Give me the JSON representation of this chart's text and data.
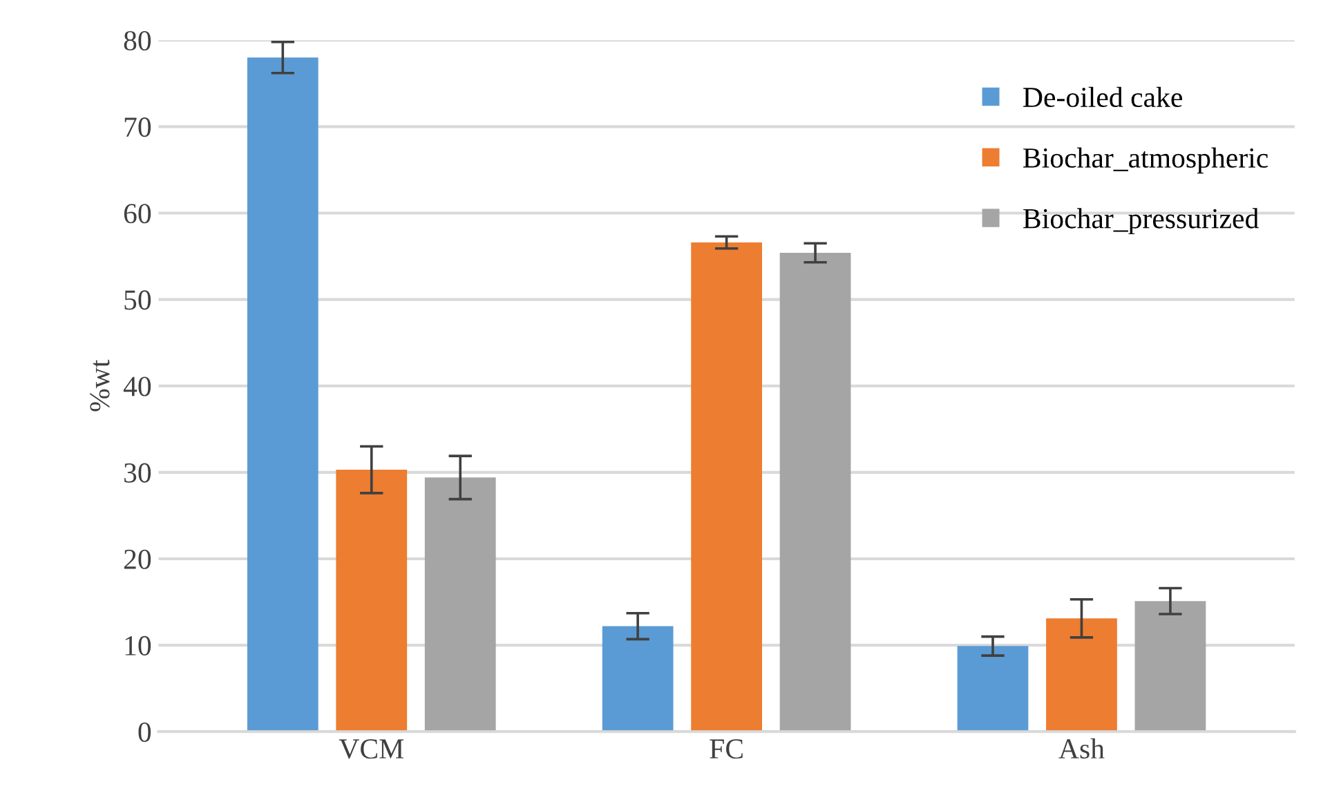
{
  "chart_data": {
    "type": "bar",
    "ylabel": "%wt",
    "categories": [
      "VCM",
      "FC",
      "Ash"
    ],
    "series": [
      {
        "name": "De-oiled cake",
        "color": "#5b9bd5",
        "values": [
          78,
          12.2,
          9.9
        ],
        "errors": [
          1.8,
          1.5,
          1.1
        ]
      },
      {
        "name": "Biochar_atmospheric",
        "color": "#ed7d31",
        "values": [
          30.3,
          56.6,
          13.1
        ],
        "errors": [
          2.7,
          0.7,
          2.2
        ]
      },
      {
        "name": "Biochar_pressurized",
        "color": "#a5a5a5",
        "values": [
          29.4,
          55.4,
          15.1
        ],
        "errors": [
          2.5,
          1.1,
          1.5
        ]
      }
    ],
    "ylim": [
      0,
      80
    ],
    "yticks": [
      0,
      10,
      20,
      30,
      40,
      50,
      60,
      70,
      80
    ],
    "grid": "y",
    "legend": "top right"
  }
}
